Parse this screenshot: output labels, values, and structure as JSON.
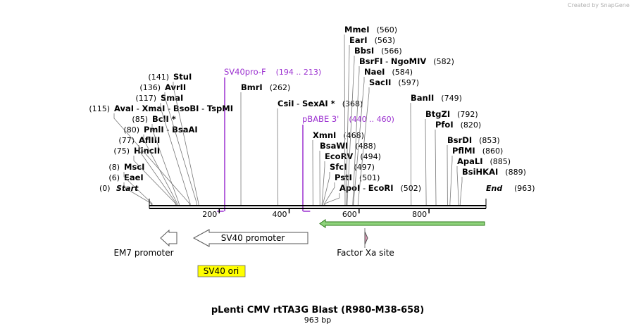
{
  "credit": "Created by SnapGene",
  "map": {
    "title": "pLenti CMV rtTA3G Blast (R980-M38-658)",
    "length_label": "963 bp",
    "total_bp": 963,
    "end_marker": {
      "name": "End",
      "pos": "(963)"
    },
    "start_marker": {
      "name": "Start",
      "pos": "(0)"
    }
  },
  "ticks": [
    {
      "value": 200,
      "label": "200"
    },
    {
      "value": 400,
      "label": "400"
    },
    {
      "value": 600,
      "label": "600"
    },
    {
      "value": 800,
      "label": "800"
    }
  ],
  "enzymes": [
    {
      "names": [
        "EaeI"
      ],
      "pos": 6,
      "pos_label": "(6)"
    },
    {
      "names": [
        "MscI"
      ],
      "pos": 8,
      "pos_label": "(8)"
    },
    {
      "names": [
        "HincII"
      ],
      "pos": 75,
      "pos_label": "(75)"
    },
    {
      "names": [
        "AflIII"
      ],
      "pos": 77,
      "pos_label": "(77)"
    },
    {
      "names": [
        "PmlI",
        "BsaAI"
      ],
      "pos": 80,
      "pos_label": "(80)"
    },
    {
      "names": [
        "BclI *"
      ],
      "pos": 85,
      "pos_label": "(85)"
    },
    {
      "names": [
        "AvaI",
        "XmaI",
        "BsoBI",
        "TspMI"
      ],
      "pos": 115,
      "pos_label": "(115)"
    },
    {
      "names": [
        "SmaI"
      ],
      "pos": 117,
      "pos_label": "(117)"
    },
    {
      "names": [
        "AvrII"
      ],
      "pos": 136,
      "pos_label": "(136)"
    },
    {
      "names": [
        "StuI"
      ],
      "pos": 141,
      "pos_label": "(141)"
    },
    {
      "names": [
        "BmrI"
      ],
      "pos": 262,
      "pos_label": "(262)"
    },
    {
      "names": [
        "CsiI",
        "SexAI *"
      ],
      "pos": 368,
      "pos_label": "(368)"
    },
    {
      "names": [
        "XmnI"
      ],
      "pos": 468,
      "pos_label": "(468)"
    },
    {
      "names": [
        "BsaWI"
      ],
      "pos": 488,
      "pos_label": "(488)"
    },
    {
      "names": [
        "EcoRV"
      ],
      "pos": 494,
      "pos_label": "(494)"
    },
    {
      "names": [
        "SfcI"
      ],
      "pos": 497,
      "pos_label": "(497)"
    },
    {
      "names": [
        "PstI"
      ],
      "pos": 501,
      "pos_label": "(501)"
    },
    {
      "names": [
        "ApoI",
        "EcoRI"
      ],
      "pos": 502,
      "pos_label": "(502)"
    },
    {
      "names": [
        "MmeI"
      ],
      "pos": 560,
      "pos_label": "(560)"
    },
    {
      "names": [
        "EarI"
      ],
      "pos": 563,
      "pos_label": "(563)"
    },
    {
      "names": [
        "BbsI"
      ],
      "pos": 566,
      "pos_label": "(566)"
    },
    {
      "names": [
        "BsrFI",
        "NgoMIV"
      ],
      "pos": 582,
      "pos_label": "(582)"
    },
    {
      "names": [
        "NaeI"
      ],
      "pos": 584,
      "pos_label": "(584)"
    },
    {
      "names": [
        "SacII"
      ],
      "pos": 597,
      "pos_label": "(597)"
    },
    {
      "names": [
        "BanII"
      ],
      "pos": 749,
      "pos_label": "(749)"
    },
    {
      "names": [
        "BtgZI"
      ],
      "pos": 792,
      "pos_label": "(792)"
    },
    {
      "names": [
        "PfoI"
      ],
      "pos": 820,
      "pos_label": "(820)"
    },
    {
      "names": [
        "BsrDI"
      ],
      "pos": 853,
      "pos_label": "(853)"
    },
    {
      "names": [
        "PflMI"
      ],
      "pos": 860,
      "pos_label": "(860)"
    },
    {
      "names": [
        "ApaLI"
      ],
      "pos": 885,
      "pos_label": "(885)"
    },
    {
      "names": [
        "BsiHKAI"
      ],
      "pos": 889,
      "pos_label": "(889)"
    }
  ],
  "primers": [
    {
      "name": "SV40pro-F",
      "range": "(194 .. 213)",
      "start": 194,
      "end": 213,
      "color": "#9b30d0"
    },
    {
      "name": "pBABE 3'",
      "range": "(440 .. 460)",
      "start": 440,
      "end": 460,
      "color": "#9b30d0"
    }
  ],
  "features": [
    {
      "name": "EM7 promoter",
      "start": 30,
      "end": 78,
      "direction": "reverse",
      "color": "#ffffff"
    },
    {
      "name": "SV40 promoter",
      "start": 118,
      "end": 448,
      "direction": "reverse",
      "color": "#ffffff"
    },
    {
      "name": "Factor Xa site",
      "start": 610,
      "end": 621,
      "direction": "forward",
      "color": "#d99ab5"
    },
    {
      "name": "",
      "start": 480,
      "end": 962,
      "direction": "reverse",
      "color": "#8fd37c"
    }
  ],
  "origin": {
    "name": "SV40 ori",
    "color": "#ffff00"
  }
}
